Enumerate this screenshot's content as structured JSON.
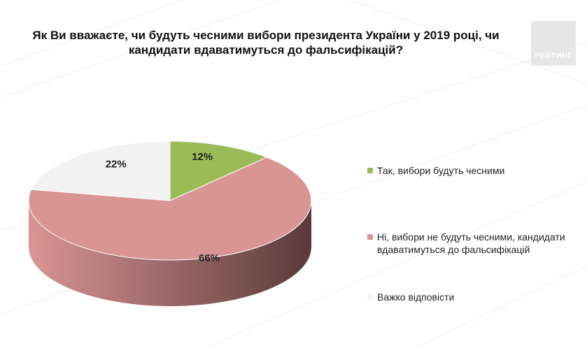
{
  "logo": {
    "text": "РЕЙТИНГ"
  },
  "chart_data": {
    "type": "pie",
    "title": "Як Ви вважаєте, чи будуть чесними вибори президента України у 2019 році, чи кандидати вдаватимуться до фальсифікацій?",
    "labels": [
      "Так, вибори будуть чесними",
      "Ні, вибори не будуть чесними, кандидати вдаватимуться до фальсифікацій",
      "Важко відповісти"
    ],
    "values": [
      12,
      66,
      22
    ],
    "value_labels": [
      "12%",
      "66%",
      "22%"
    ],
    "colors": [
      "#9bbb59",
      "#d99594",
      "#f2f2f2"
    ],
    "side_colors": [
      "#6f8a3e",
      "#5a3a3a",
      "#c8c8c8"
    ],
    "legend_position": "right"
  }
}
